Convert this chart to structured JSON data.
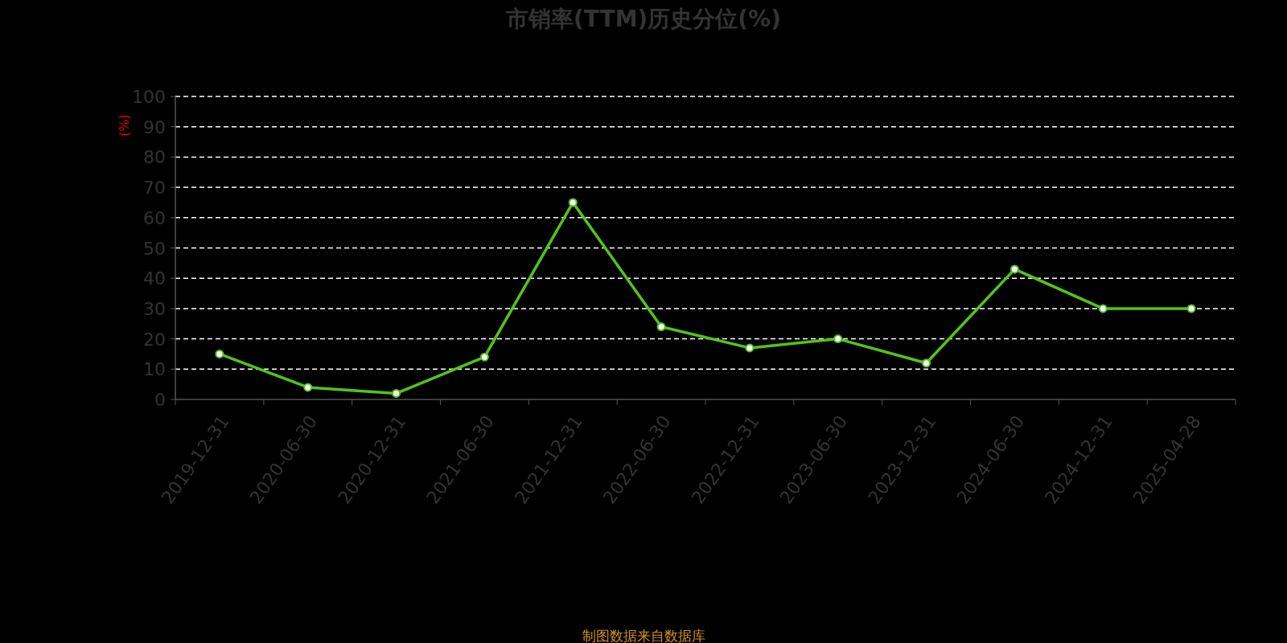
{
  "chart_data": {
    "type": "line",
    "title": "市销率(TTM)历史分位(%)",
    "ylabel": "(%)",
    "annotations": [
      "制图数据来自数据库"
    ],
    "categories": [
      "2019-12-31",
      "2020-06-30",
      "2020-12-31",
      "2021-06-30",
      "2021-12-31",
      "2022-06-30",
      "2022-12-31",
      "2023-06-30",
      "2023-12-31",
      "2024-06-30",
      "2024-12-31",
      "2025-04-28"
    ],
    "series": [
      {
        "color": "#52c41a",
        "values": [
          15,
          4,
          2,
          14,
          65,
          24,
          17,
          20,
          12,
          43,
          30,
          30
        ]
      }
    ],
    "ylim": [
      0,
      100
    ],
    "yticks": [
      0,
      10,
      20,
      30,
      40,
      50,
      60,
      70,
      80,
      90,
      100
    ],
    "grid": "y",
    "marker": "circle",
    "line_style": "solid"
  }
}
